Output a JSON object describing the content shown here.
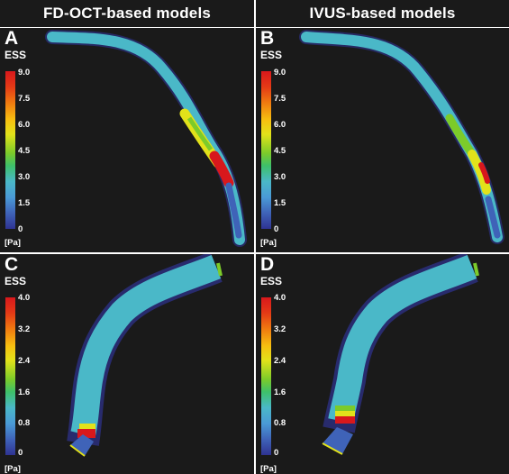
{
  "headers": {
    "left": "FD-OCT-based models",
    "right": "IVUS-based models"
  },
  "panels": [
    {
      "letter": "A",
      "colorbar_title": "ESS",
      "unit": "[Pa]",
      "ticks": [
        "9.0",
        "7.5",
        "6.0",
        "4.5",
        "3.0",
        "1.5",
        "0"
      ]
    },
    {
      "letter": "B",
      "colorbar_title": "ESS",
      "unit": "[Pa]",
      "ticks": [
        "9.0",
        "7.5",
        "6.0",
        "4.5",
        "3.0",
        "1.5",
        "0"
      ]
    },
    {
      "letter": "C",
      "colorbar_title": "ESS",
      "unit": "[Pa]",
      "ticks": [
        "4.0",
        "3.2",
        "2.4",
        "1.6",
        "0.8",
        "0"
      ]
    },
    {
      "letter": "D",
      "colorbar_title": "ESS",
      "unit": "[Pa]",
      "ticks": [
        "4.0",
        "3.2",
        "2.4",
        "1.6",
        "0.8",
        "0"
      ]
    }
  ],
  "colors": {
    "background": "#1a1a1a",
    "low": "#2f3392",
    "mid_low": "#4ab8c8",
    "mid": "#7ccb2a",
    "mid_high": "#e2e21a",
    "high": "#d8181c"
  }
}
